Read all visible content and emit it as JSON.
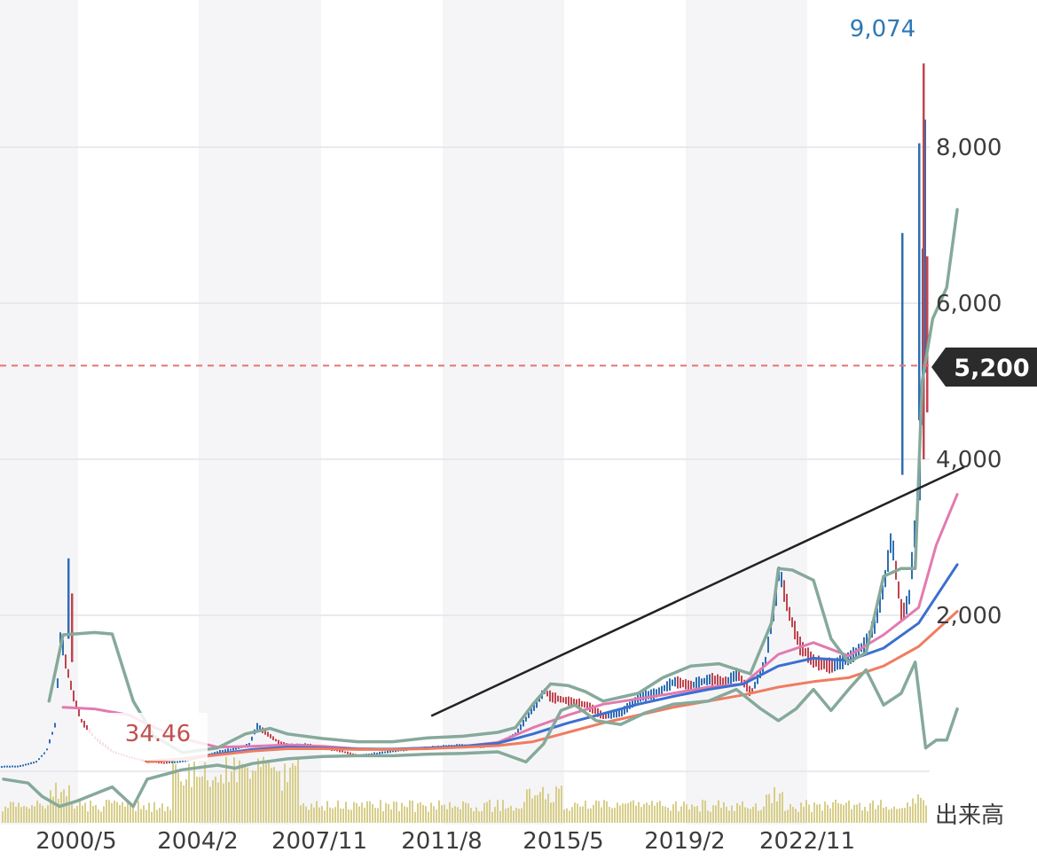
{
  "chart_data": {
    "type": "candlestick",
    "y_axis": {
      "position": "right",
      "ticks": [
        2000,
        4000,
        6000,
        8000
      ],
      "tick_labels": [
        "2,000",
        "4,000",
        "6,000",
        "8,000"
      ],
      "range": [
        0,
        10000
      ]
    },
    "x_axis": {
      "tick_labels": [
        "2000/5",
        "2004/2",
        "2007/11",
        "2011/8",
        "2015/5",
        "2019/2",
        "2022/11"
      ],
      "range": [
        1998.8,
        2026.3
      ]
    },
    "volume_label": "出来高",
    "current_price": {
      "value": 5200,
      "label": "5,200",
      "color": "#e57373"
    },
    "annotations": [
      {
        "text": "9,074",
        "value": 9074,
        "x": 2025.1,
        "color": "#2e78b5"
      },
      {
        "text": "34.46",
        "value": 34.46,
        "color": "#c0504d"
      }
    ],
    "trendline": {
      "from": [
        2011.1,
        710
      ],
      "to": [
        2026.3,
        3900
      ],
      "color": "#222222"
    },
    "close_series": [
      [
        1998.8,
        60
      ],
      [
        1999.3,
        65
      ],
      [
        1999.8,
        120
      ],
      [
        2000.1,
        260
      ],
      [
        2000.35,
        600
      ],
      [
        2000.5,
        1750
      ],
      [
        2000.65,
        1400
      ],
      [
        2000.85,
        1000
      ],
      [
        2001.1,
        650
      ],
      [
        2001.5,
        420
      ],
      [
        2002,
        250
      ],
      [
        2002.5,
        180
      ],
      [
        2003,
        130
      ],
      [
        2003.5,
        110
      ],
      [
        2004,
        130
      ],
      [
        2004.5,
        180
      ],
      [
        2005,
        250
      ],
      [
        2005.5,
        290
      ],
      [
        2005.9,
        350
      ],
      [
        2006.1,
        580
      ],
      [
        2006.4,
        480
      ],
      [
        2006.7,
        380
      ],
      [
        2007,
        330
      ],
      [
        2007.5,
        340
      ],
      [
        2008,
        300
      ],
      [
        2008.5,
        260
      ],
      [
        2009,
        200
      ],
      [
        2009.5,
        230
      ],
      [
        2010,
        260
      ],
      [
        2010.5,
        290
      ],
      [
        2011,
        300
      ],
      [
        2011.5,
        320
      ],
      [
        2012,
        330
      ],
      [
        2012.5,
        320
      ],
      [
        2013,
        360
      ],
      [
        2013.5,
        480
      ],
      [
        2014,
        820
      ],
      [
        2014.3,
        1030
      ],
      [
        2014.5,
        950
      ],
      [
        2015,
        900
      ],
      [
        2015.5,
        850
      ],
      [
        2016,
        700
      ],
      [
        2016.5,
        750
      ],
      [
        2017,
        950
      ],
      [
        2017.5,
        1000
      ],
      [
        2018,
        1150
      ],
      [
        2018.5,
        1100
      ],
      [
        2019,
        1180
      ],
      [
        2019.5,
        1150
      ],
      [
        2019.8,
        1250
      ],
      [
        2020.2,
        1000
      ],
      [
        2020.6,
        1400
      ],
      [
        2020.9,
        2200
      ],
      [
        2021,
        2580
      ],
      [
        2021.3,
        2000
      ],
      [
        2021.6,
        1600
      ],
      [
        2022,
        1400
      ],
      [
        2022.5,
        1350
      ],
      [
        2023,
        1450
      ],
      [
        2023.5,
        1650
      ],
      [
        2023.8,
        2000
      ],
      [
        2024,
        2400
      ],
      [
        2024.2,
        3000
      ],
      [
        2024.5,
        2000
      ],
      [
        2024.7,
        2200
      ],
      [
        2025,
        3800
      ],
      [
        2025.15,
        6900
      ],
      [
        2025.35,
        4000
      ],
      [
        2025.5,
        6500
      ],
      [
        2025.65,
        7900
      ],
      [
        2025.8,
        9074
      ],
      [
        2025.95,
        6400
      ],
      [
        2026.1,
        5200
      ]
    ],
    "moving_averages": [
      {
        "color": "#e27ab0",
        "points": [
          [
            2000.6,
            820
          ],
          [
            2001.5,
            800
          ],
          [
            2002.5,
            720
          ],
          [
            2003,
            600
          ],
          [
            2004,
            420
          ],
          [
            2005,
            310
          ],
          [
            2006,
            320
          ],
          [
            2007,
            340
          ],
          [
            2008,
            320
          ],
          [
            2009,
            290
          ],
          [
            2010,
            280
          ],
          [
            2011,
            300
          ],
          [
            2012,
            320
          ],
          [
            2013,
            370
          ],
          [
            2014,
            560
          ],
          [
            2015,
            720
          ],
          [
            2016,
            860
          ],
          [
            2017,
            930
          ],
          [
            2018,
            1000
          ],
          [
            2019,
            1080
          ],
          [
            2020,
            1120
          ],
          [
            2021,
            1500
          ],
          [
            2022,
            1650
          ],
          [
            2023,
            1480
          ],
          [
            2024,
            1750
          ],
          [
            2025,
            2100
          ],
          [
            2025.5,
            2900
          ],
          [
            2026.1,
            3550
          ]
        ]
      },
      {
        "color": "#3b6fd0",
        "points": [
          [
            2003,
            130
          ],
          [
            2004,
            160
          ],
          [
            2005,
            220
          ],
          [
            2006,
            280
          ],
          [
            2007,
            310
          ],
          [
            2008,
            300
          ],
          [
            2009,
            285
          ],
          [
            2010,
            285
          ],
          [
            2011,
            300
          ],
          [
            2012,
            320
          ],
          [
            2013,
            360
          ],
          [
            2014,
            480
          ],
          [
            2015,
            620
          ],
          [
            2016,
            740
          ],
          [
            2017,
            860
          ],
          [
            2018,
            960
          ],
          [
            2019,
            1050
          ],
          [
            2020,
            1120
          ],
          [
            2021,
            1350
          ],
          [
            2022,
            1450
          ],
          [
            2023,
            1420
          ],
          [
            2024,
            1580
          ],
          [
            2025,
            1900
          ],
          [
            2026.1,
            2650
          ]
        ]
      },
      {
        "color": "#f07c60",
        "points": [
          [
            2003,
            120
          ],
          [
            2004,
            160
          ],
          [
            2005,
            210
          ],
          [
            2006,
            260
          ],
          [
            2007,
            290
          ],
          [
            2008,
            290
          ],
          [
            2009,
            280
          ],
          [
            2010,
            280
          ],
          [
            2011,
            290
          ],
          [
            2012,
            310
          ],
          [
            2013,
            330
          ],
          [
            2014,
            380
          ],
          [
            2015,
            500
          ],
          [
            2016,
            620
          ],
          [
            2017,
            720
          ],
          [
            2018,
            820
          ],
          [
            2019,
            900
          ],
          [
            2020,
            980
          ],
          [
            2021,
            1080
          ],
          [
            2022,
            1150
          ],
          [
            2023,
            1200
          ],
          [
            2024,
            1350
          ],
          [
            2025,
            1600
          ],
          [
            2026.1,
            2050
          ]
        ]
      }
    ],
    "bollinger": {
      "color": "#86a99a",
      "upper": [
        [
          2000.2,
          900
        ],
        [
          2000.6,
          1750
        ],
        [
          2001.5,
          1780
        ],
        [
          2002,
          1760
        ],
        [
          2002.6,
          900
        ],
        [
          2003.2,
          450
        ],
        [
          2004,
          240
        ],
        [
          2005,
          300
        ],
        [
          2005.8,
          480
        ],
        [
          2006.5,
          550
        ],
        [
          2007,
          480
        ],
        [
          2008,
          420
        ],
        [
          2009,
          380
        ],
        [
          2010,
          380
        ],
        [
          2011,
          430
        ],
        [
          2012,
          450
        ],
        [
          2013,
          500
        ],
        [
          2013.5,
          560
        ],
        [
          2014,
          860
        ],
        [
          2014.5,
          1120
        ],
        [
          2015,
          1100
        ],
        [
          2015.5,
          1020
        ],
        [
          2016,
          900
        ],
        [
          2017,
          1000
        ],
        [
          2017.7,
          1200
        ],
        [
          2018.5,
          1350
        ],
        [
          2019.3,
          1380
        ],
        [
          2020.2,
          1250
        ],
        [
          2020.8,
          1900
        ],
        [
          2021,
          2600
        ],
        [
          2021.4,
          2580
        ],
        [
          2022,
          2450
        ],
        [
          2022.5,
          1700
        ],
        [
          2023,
          1400
        ],
        [
          2023.5,
          1520
        ],
        [
          2024,
          2500
        ],
        [
          2024.5,
          2600
        ],
        [
          2024.9,
          2600
        ],
        [
          2025.1,
          5000
        ],
        [
          2025.4,
          5800
        ],
        [
          2025.8,
          6200
        ],
        [
          2026.1,
          7200
        ]
      ],
      "lower": [
        [
          1998.9,
          -100
        ],
        [
          1999.6,
          -150
        ],
        [
          2000,
          -320
        ],
        [
          2000.5,
          -450
        ],
        [
          2001,
          -380
        ],
        [
          2002,
          -200
        ],
        [
          2002.6,
          -450
        ],
        [
          2003,
          -100
        ],
        [
          2004,
          20
        ],
        [
          2005,
          80
        ],
        [
          2005.5,
          40
        ],
        [
          2006,
          100
        ],
        [
          2007,
          160
        ],
        [
          2008,
          190
        ],
        [
          2009,
          200
        ],
        [
          2010,
          200
        ],
        [
          2011,
          220
        ],
        [
          2012,
          230
        ],
        [
          2013,
          250
        ],
        [
          2013.8,
          120
        ],
        [
          2014.3,
          350
        ],
        [
          2014.8,
          780
        ],
        [
          2015.2,
          850
        ],
        [
          2015.8,
          650
        ],
        [
          2016.5,
          600
        ],
        [
          2017.2,
          750
        ],
        [
          2018,
          860
        ],
        [
          2019,
          900
        ],
        [
          2019.8,
          1050
        ],
        [
          2020.5,
          800
        ],
        [
          2021,
          650
        ],
        [
          2021.5,
          800
        ],
        [
          2022,
          1050
        ],
        [
          2022.5,
          780
        ],
        [
          2023,
          1050
        ],
        [
          2023.5,
          1300
        ],
        [
          2024,
          850
        ],
        [
          2024.5,
          1000
        ],
        [
          2024.9,
          1400
        ],
        [
          2025.2,
          300
        ],
        [
          2025.5,
          400
        ],
        [
          2025.8,
          400
        ],
        [
          2026.1,
          800
        ]
      ]
    }
  }
}
